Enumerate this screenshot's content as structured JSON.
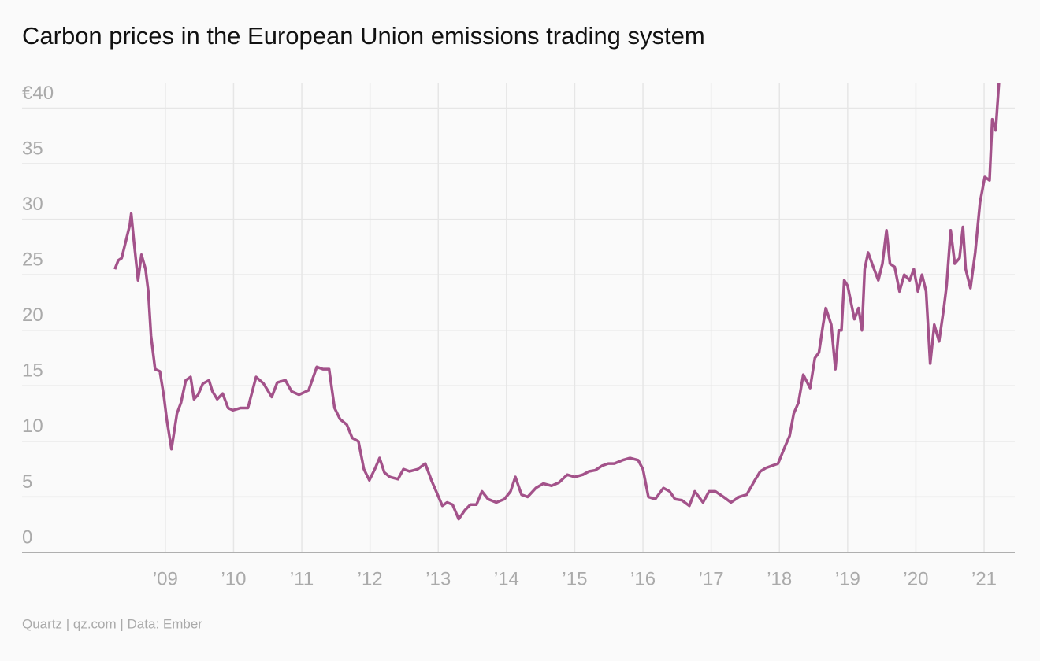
{
  "chart_data": {
    "type": "line",
    "title": "Carbon prices in the European Union emissions trading system",
    "source": "Quartz | qz.com | Data: Ember",
    "color": "#a3528a",
    "grid": true,
    "xlim": [
      2006.9,
      2021.45
    ],
    "xticks": [
      {
        "value": 2009,
        "label": "’09"
      },
      {
        "value": 2010,
        "label": "’10"
      },
      {
        "value": 2011,
        "label": "’11"
      },
      {
        "value": 2012,
        "label": "’12"
      },
      {
        "value": 2013,
        "label": "’13"
      },
      {
        "value": 2014,
        "label": "’14"
      },
      {
        "value": 2015,
        "label": "’15"
      },
      {
        "value": 2016,
        "label": "’16"
      },
      {
        "value": 2017,
        "label": "’17"
      },
      {
        "value": 2018,
        "label": "’18"
      },
      {
        "value": 2019,
        "label": "’19"
      },
      {
        "value": 2020,
        "label": "’20"
      },
      {
        "value": 2021,
        "label": "’21"
      }
    ],
    "ylim": [
      0,
      42.3
    ],
    "yticks": [
      0,
      5,
      10,
      15,
      20,
      25,
      30,
      35,
      {
        "value": 40,
        "label": "€40"
      }
    ],
    "x": [
      2008.26,
      2008.31,
      2008.36,
      2008.42,
      2008.48,
      2008.5,
      2008.54,
      2008.6,
      2008.65,
      2008.71,
      2008.75,
      2008.79,
      2008.85,
      2008.92,
      2008.98,
      2009.02,
      2009.09,
      2009.17,
      2009.23,
      2009.3,
      2009.37,
      2009.42,
      2009.48,
      2009.55,
      2009.64,
      2009.69,
      2009.76,
      2009.84,
      2009.92,
      2009.99,
      2010.1,
      2010.21,
      2010.33,
      2010.44,
      2010.56,
      2010.64,
      2010.76,
      2010.85,
      2010.96,
      2011.1,
      2011.22,
      2011.31,
      2011.4,
      2011.48,
      2011.56,
      2011.66,
      2011.74,
      2011.83,
      2011.91,
      2011.99,
      2012.07,
      2012.14,
      2012.21,
      2012.29,
      2012.41,
      2012.49,
      2012.58,
      2012.7,
      2012.81,
      2012.9,
      2012.99,
      2013.06,
      2013.13,
      2013.21,
      2013.3,
      2013.39,
      2013.47,
      2013.56,
      2013.64,
      2013.73,
      2013.85,
      2013.97,
      2014.06,
      2014.13,
      2014.22,
      2014.31,
      2014.43,
      2014.54,
      2014.66,
      2014.77,
      2014.89,
      2015.0,
      2015.12,
      2015.21,
      2015.3,
      2015.4,
      2015.49,
      2015.58,
      2015.7,
      2015.81,
      2015.93,
      2016.0,
      2016.08,
      2016.18,
      2016.3,
      2016.39,
      2016.47,
      2016.57,
      2016.68,
      2016.76,
      2016.88,
      2016.97,
      2017.06,
      2017.18,
      2017.29,
      2017.41,
      2017.52,
      2017.64,
      2017.72,
      2017.8,
      2017.89,
      2017.98,
      2018.08,
      2018.15,
      2018.21,
      2018.28,
      2018.35,
      2018.45,
      2018.52,
      2018.58,
      2018.64,
      2018.68,
      2018.76,
      2018.82,
      2018.87,
      2018.91,
      2018.95,
      2019.0,
      2019.05,
      2019.1,
      2019.16,
      2019.21,
      2019.25,
      2019.3,
      2019.37,
      2019.45,
      2019.51,
      2019.57,
      2019.62,
      2019.69,
      2019.76,
      2019.83,
      2019.91,
      2019.97,
      2020.03,
      2020.09,
      2020.15,
      2020.21,
      2020.27,
      2020.34,
      2020.41,
      2020.45,
      2020.51,
      2020.57,
      2020.64,
      2020.69,
      2020.73,
      2020.8,
      2020.87,
      2020.94,
      2021.01,
      2021.08,
      2021.12,
      2021.17,
      2021.22,
      2021.26
    ],
    "values": [
      25.5,
      26.3,
      26.5,
      28,
      29.5,
      30.5,
      28,
      24.5,
      26.8,
      25.5,
      23.5,
      19.5,
      16.5,
      16.3,
      14,
      12,
      9.3,
      12.5,
      13.5,
      15.5,
      15.8,
      13.8,
      14.2,
      15.2,
      15.5,
      14.5,
      13.8,
      14.3,
      13,
      12.8,
      13,
      13,
      15.8,
      15.2,
      14,
      15.3,
      15.5,
      14.5,
      14.2,
      14.6,
      16.7,
      16.5,
      16.5,
      13,
      12,
      11.5,
      10.3,
      10,
      7.5,
      6.5,
      7.5,
      8.5,
      7.2,
      6.8,
      6.6,
      7.5,
      7.3,
      7.5,
      8,
      6.5,
      5.2,
      4.2,
      4.5,
      4.3,
      3,
      3.8,
      4.3,
      4.3,
      5.5,
      4.8,
      4.5,
      4.8,
      5.5,
      6.8,
      5.2,
      5,
      5.8,
      6.2,
      6,
      6.3,
      7,
      6.8,
      7,
      7.3,
      7.4,
      7.8,
      8,
      8,
      8.3,
      8.5,
      8.3,
      7.5,
      5,
      4.8,
      5.8,
      5.5,
      4.8,
      4.7,
      4.2,
      5.5,
      4.5,
      5.5,
      5.5,
      5,
      4.5,
      5,
      5.2,
      6.5,
      7.3,
      7.6,
      7.8,
      8,
      9.5,
      10.5,
      12.5,
      13.5,
      16,
      14.8,
      17.5,
      18,
      20.5,
      22,
      20.5,
      16.5,
      20,
      20,
      24.5,
      24,
      22.5,
      21,
      22,
      20,
      25.5,
      27,
      25.8,
      24.5,
      26,
      29,
      26,
      25.7,
      23.5,
      25,
      24.5,
      25.5,
      23.5,
      25,
      23.5,
      17,
      20.5,
      19,
      22,
      24,
      29,
      26,
      26.5,
      29.3,
      25.5,
      23.8,
      27,
      31.5,
      33.8,
      33.5,
      39,
      38,
      42.5,
      42.3
    ]
  }
}
